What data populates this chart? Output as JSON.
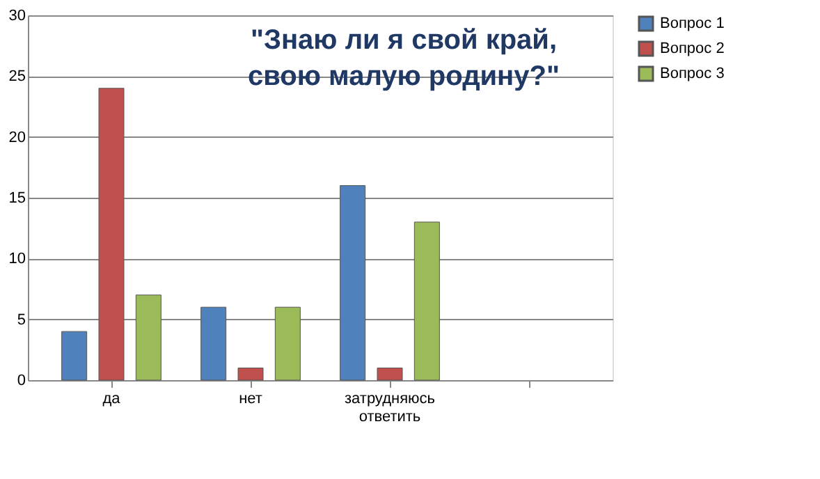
{
  "chart_data": {
    "type": "bar",
    "title": "\"Знаю ли я свой край,\nсвою малую родину?\"",
    "categories": [
      "да",
      "нет",
      "затрудняюсь ответить",
      null
    ],
    "series": [
      {
        "name": "Вопрос 1",
        "color": "#4f81bd",
        "values": [
          4,
          6,
          16,
          null
        ]
      },
      {
        "name": "Вопрос 2",
        "color": "#c0504d",
        "values": [
          24,
          1,
          1,
          null
        ]
      },
      {
        "name": "Вопрос  3",
        "color": "#9bbb59",
        "values": [
          7,
          6,
          13,
          null
        ]
      }
    ],
    "ylim": [
      0,
      30
    ],
    "yticks": [
      0,
      5,
      10,
      15,
      20,
      25,
      30
    ],
    "grid": "y",
    "legend": "right"
  }
}
